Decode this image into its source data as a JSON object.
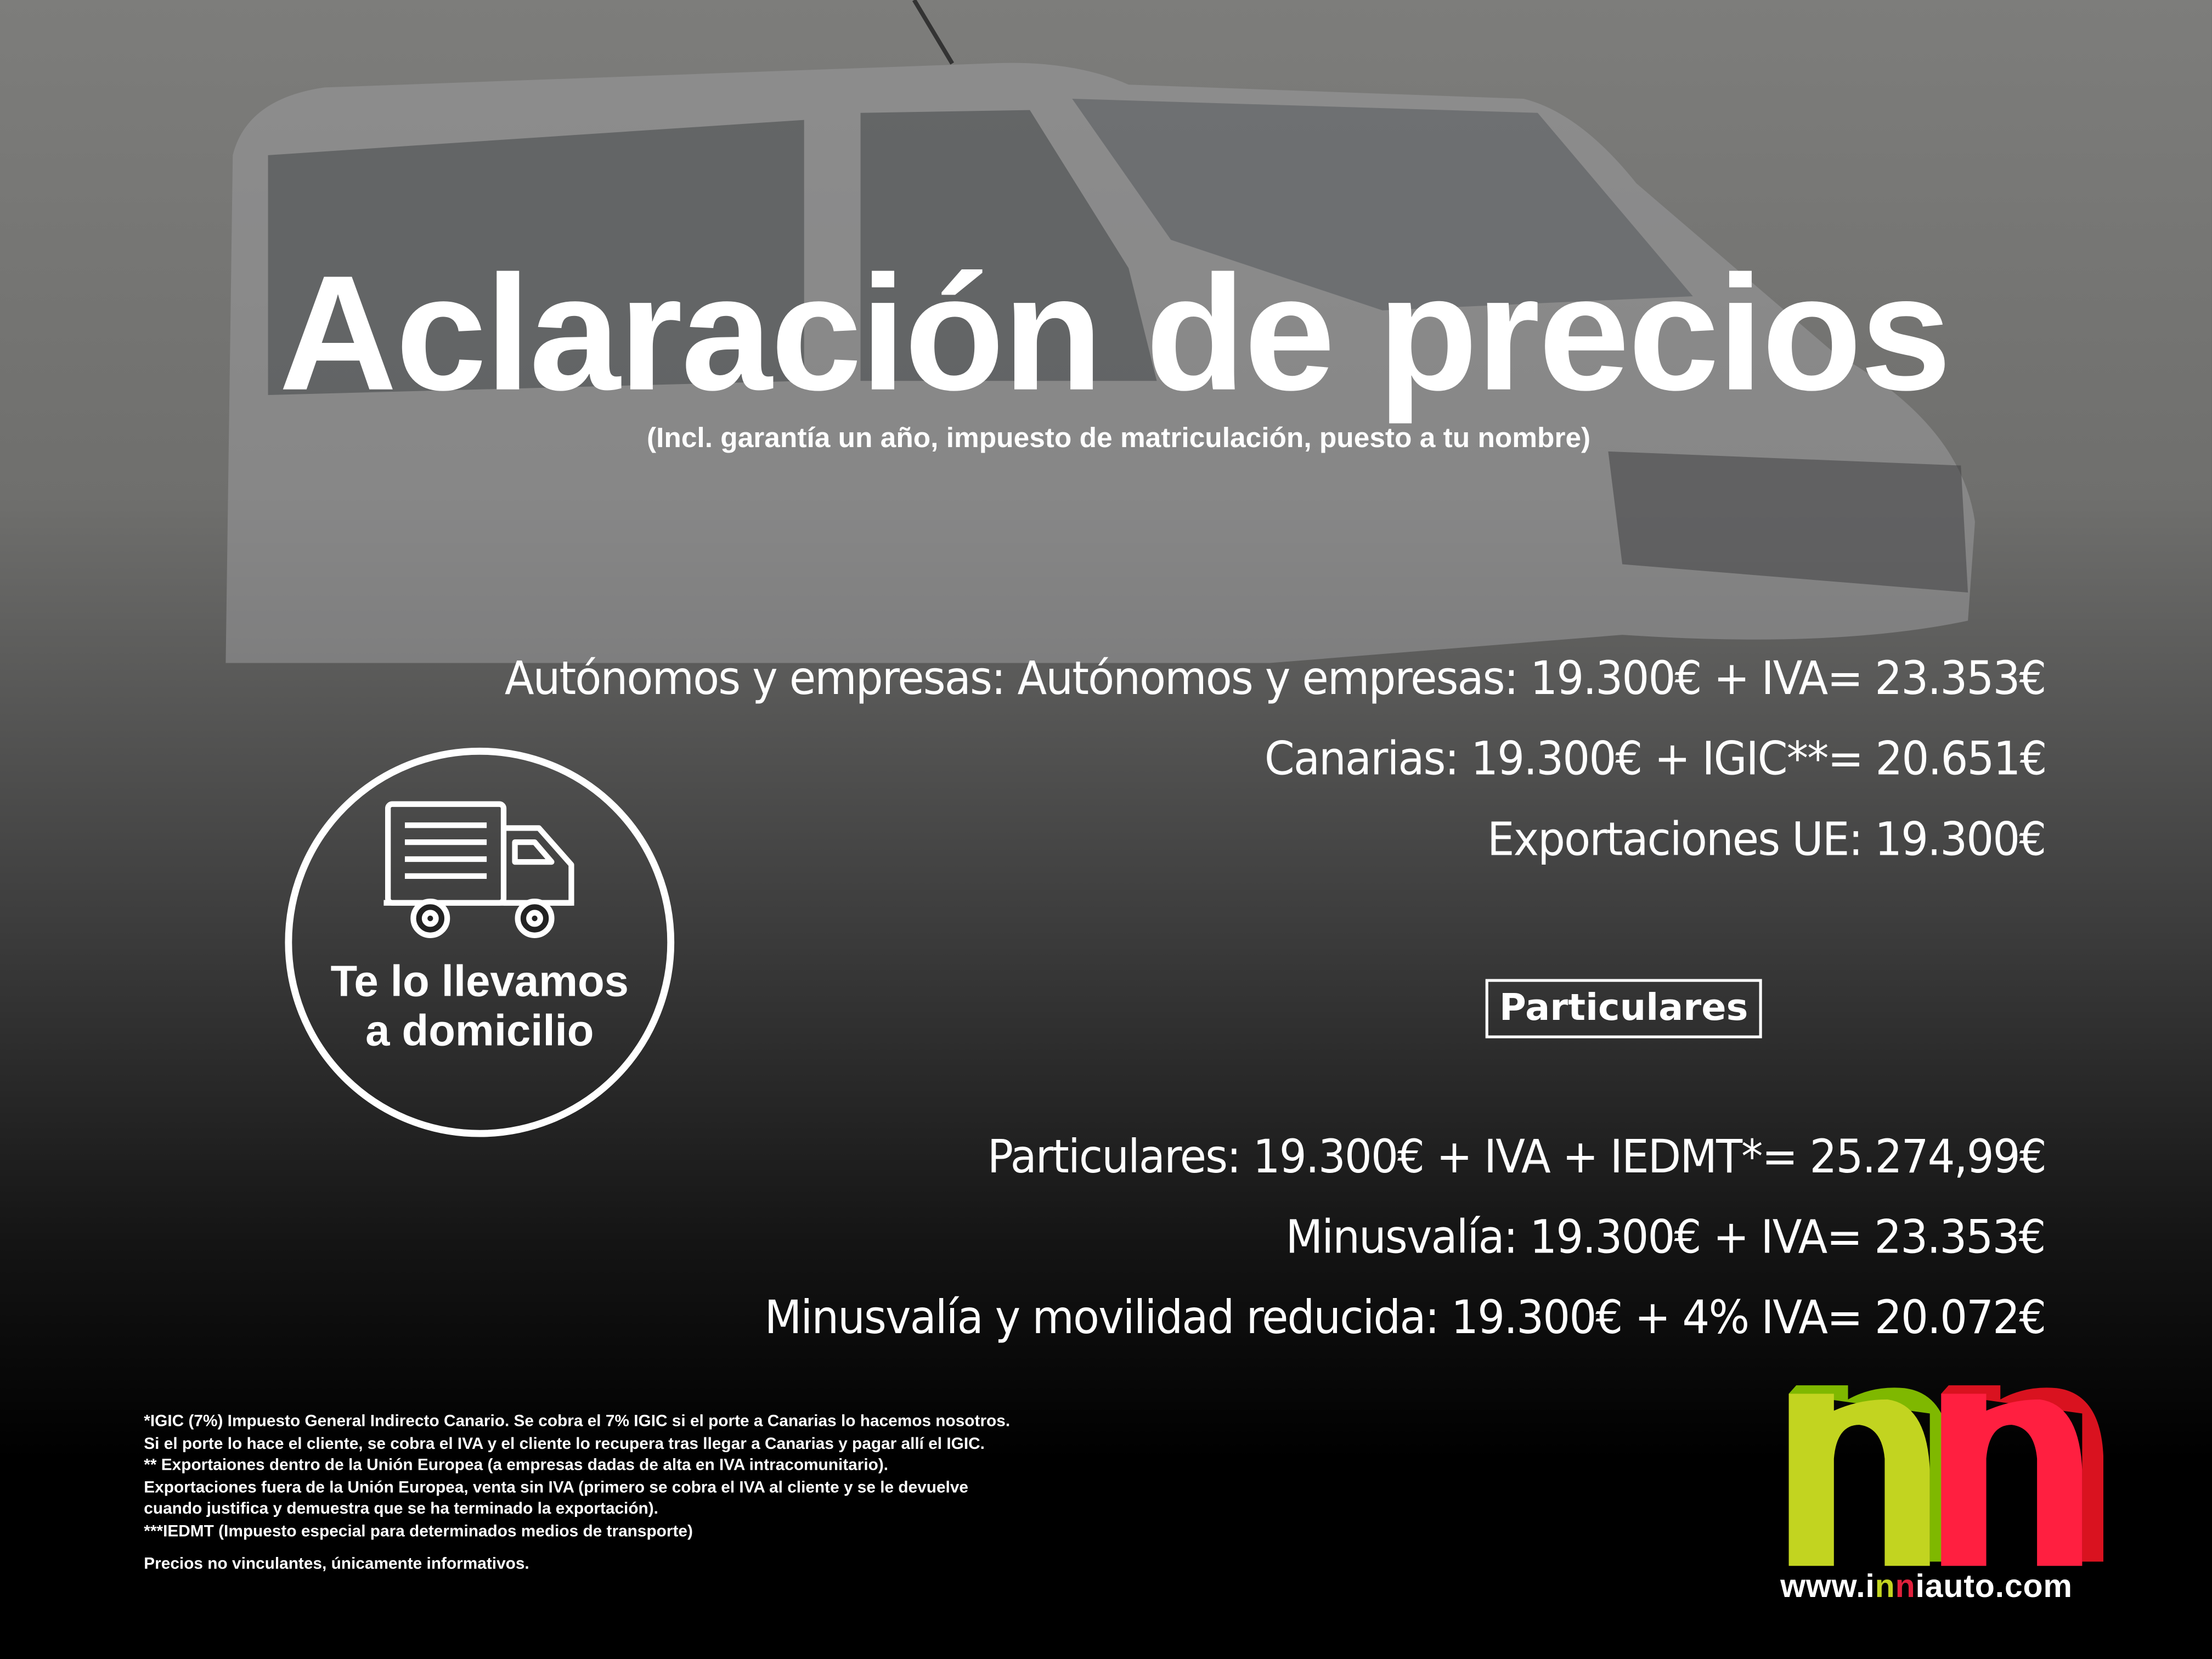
{
  "header": {
    "title": "Aclaración de precios",
    "subtitle": "(Incl. garantía un año, impuesto de matriculación, puesto a tu nombre)"
  },
  "business_prices": [
    "Autónomos y empresas: Autónomos y empresas: 19.300€ + IVA= 23.353€",
    "Canarias: 19.300€ + IGIC**= 20.651€",
    "Exportaciones UE: 19.300€"
  ],
  "particulares_badge": "Particulares",
  "private_prices": [
    "Particulares: 19.300€ + IVA + IEDMT*= 25.274,99€",
    "Minusvalía: 19.300€ + IVA= 23.353€",
    "Minusvalía y movilidad reducida: 19.300€ + 4% IVA= 20.072€"
  ],
  "delivery": {
    "icon": "delivery-truck-icon",
    "line1": "Te lo llevamos",
    "line2": "a domicilio"
  },
  "footnotes": [
    "*IGIC (7%) Impuesto General Indirecto Canario. Se cobra el 7% IGIC si el porte a Canarias lo hacemos nosotros.",
    "Si el porte lo hace el cliente, se cobra el IVA y el cliente lo recupera tras llegar a Canarias y pagar allí el IGIC.",
    "** Exportaiones dentro de la Unión Europea (a empresas dadas de alta en IVA intracomunitario).",
    "Exportaciones fuera de la Unión Europea, venta sin IVA (primero se cobra el IVA al cliente y se le devuelve",
    "cuando justifica y demuestra que se ha terminado la exportación).",
    "***IEDMT (Impuesto especial para determinados medios de transporte)"
  ],
  "disclaimer": "Precios no vinculantes, únicamente informativos.",
  "logo": {
    "text": "nn",
    "url_prefix": "www.i",
    "url_n1": "n",
    "url_n2": "n",
    "url_suffix": "iauto.com",
    "colors": {
      "green": "#c2d420",
      "green_dark": "#7fb800",
      "red": "#ff1f40",
      "red_dark": "#d9121f"
    }
  }
}
